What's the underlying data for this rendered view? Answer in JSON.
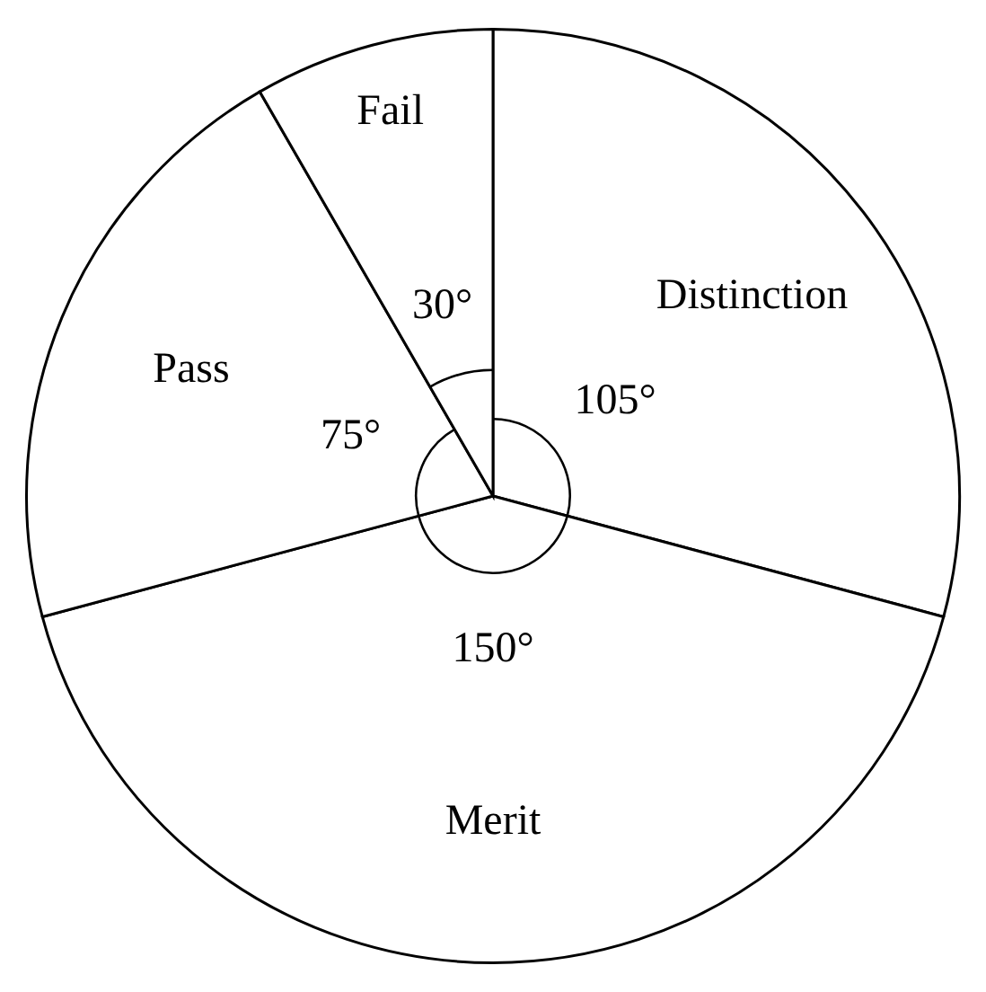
{
  "chart_data": {
    "type": "pie",
    "categories": [
      "Distinction",
      "Merit",
      "Pass",
      "Fail"
    ],
    "values": [
      105,
      150,
      75,
      30
    ],
    "colors": [
      "#ffffff",
      "#ffffff",
      "#ffffff",
      "#ffffff"
    ],
    "value_labels": [
      "105°",
      "150°",
      "75°",
      "30°"
    ],
    "legend": false
  }
}
